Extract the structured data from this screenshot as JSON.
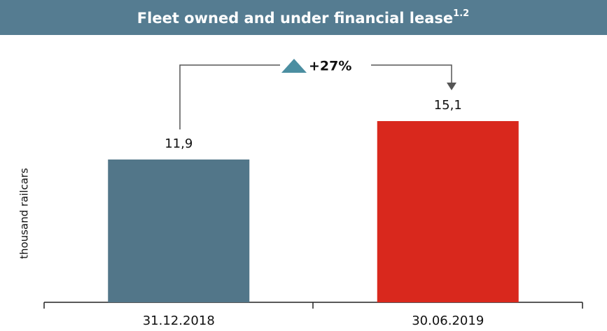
{
  "chart_data": {
    "type": "bar",
    "title": "Fleet owned and under financial lease",
    "title_superscript": "1.2",
    "y_axis_label": "thousand railcars",
    "annotation": "+27%",
    "categories": [
      "31.12.2018",
      "30.06.2019"
    ],
    "values": [
      11.9,
      15.1
    ],
    "value_labels": [
      "11,9",
      "15,1"
    ],
    "colors": [
      "#527689",
      "#d9281d"
    ],
    "ylim": [
      0,
      20
    ],
    "grid": false
  }
}
